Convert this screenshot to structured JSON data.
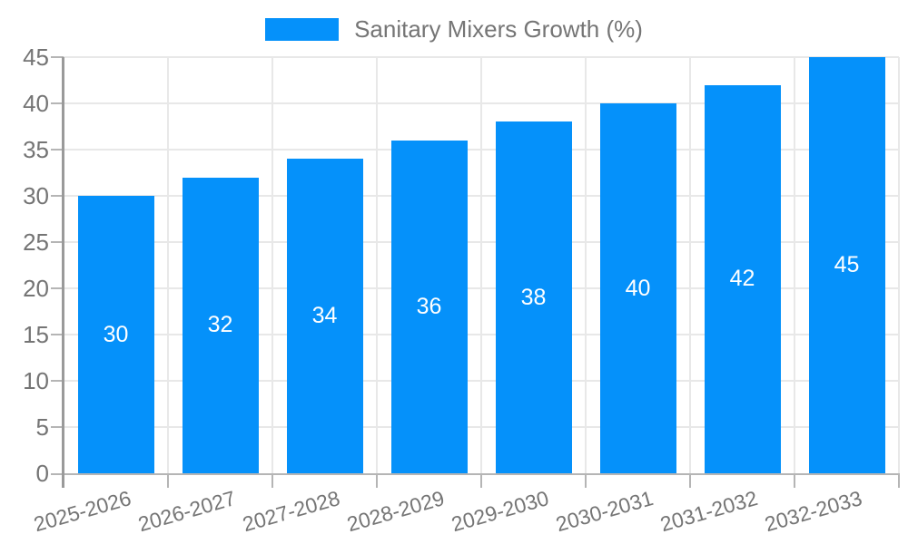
{
  "legend": {
    "label": "Sanitary Mixers Growth (%)",
    "position": "top"
  },
  "colors": {
    "bar": "#0591fa",
    "grid": "#e8e8e8",
    "baseline": "#b5b5b5",
    "axis": "#9a9a9a",
    "text": "#757575",
    "bar_label": "#ffffff",
    "background": "#ffffff"
  },
  "chart_data": {
    "type": "bar",
    "title": "",
    "categories": [
      "2025-2026",
      "2026-2027",
      "2027-2028",
      "2028-2029",
      "2029-2030",
      "2030-2031",
      "2031-2032",
      "2032-2033"
    ],
    "values": [
      30,
      32,
      34,
      36,
      38,
      40,
      42,
      45
    ],
    "series": [
      {
        "name": "Sanitary Mixers Growth (%)",
        "values": [
          30,
          32,
          34,
          36,
          38,
          40,
          42,
          45
        ]
      }
    ],
    "xlabel": "",
    "ylabel": "",
    "ylim": [
      0,
      45
    ],
    "y_ticks": [
      0,
      5,
      10,
      15,
      20,
      25,
      30,
      35,
      40,
      45
    ],
    "x_tick_rotation_deg": -16,
    "grid": "both",
    "legend_position": "top",
    "show_bar_value_labels": true
  }
}
